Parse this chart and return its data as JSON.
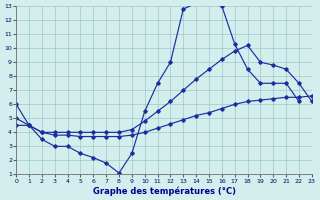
{
  "xlabel": "Graphe des températures (°C)",
  "xlim": [
    0,
    23
  ],
  "ylim": [
    1,
    13
  ],
  "xticks": [
    0,
    1,
    2,
    3,
    4,
    5,
    6,
    7,
    8,
    9,
    10,
    11,
    12,
    13,
    14,
    15,
    16,
    17,
    18,
    19,
    20,
    21,
    22,
    23
  ],
  "yticks": [
    1,
    2,
    3,
    4,
    5,
    6,
    7,
    8,
    9,
    10,
    11,
    12,
    13
  ],
  "bg_color": "#d4eeee",
  "line_color": "#1a2e9e",
  "grid_color": "#9cc8c8",
  "line1_x": [
    0,
    1,
    2,
    3,
    4,
    5,
    6,
    7,
    8,
    9,
    10,
    11,
    12,
    13,
    14,
    15,
    16,
    17,
    18,
    19,
    20,
    21,
    22
  ],
  "line1_y": [
    6.0,
    4.5,
    3.5,
    3.0,
    3.0,
    2.5,
    2.2,
    1.8,
    1.1,
    2.5,
    5.5,
    7.5,
    9.0,
    12.8,
    13.2,
    13.2,
    13.0,
    10.3,
    8.5,
    7.5,
    7.5,
    7.5,
    6.2
  ],
  "line2_x": [
    0,
    1,
    2,
    3,
    4,
    5,
    6,
    7,
    8,
    9,
    10,
    11,
    12,
    13,
    14,
    15,
    16,
    17,
    18,
    19,
    20,
    21,
    22,
    23
  ],
  "line2_y": [
    4.5,
    4.5,
    4.0,
    3.8,
    3.8,
    3.7,
    3.7,
    3.7,
    3.7,
    3.8,
    4.0,
    4.3,
    4.6,
    4.9,
    5.2,
    5.4,
    5.7,
    6.0,
    6.2,
    6.3,
    6.4,
    6.5,
    6.5,
    6.6
  ],
  "line3_x": [
    0,
    1,
    2,
    3,
    4,
    5,
    6,
    7,
    8,
    9,
    10,
    11,
    12,
    13,
    14,
    15,
    16,
    17,
    18,
    19,
    20,
    21,
    22,
    23
  ],
  "line3_y": [
    5.0,
    4.5,
    4.0,
    4.0,
    4.0,
    4.0,
    4.0,
    4.0,
    4.0,
    4.2,
    4.8,
    5.5,
    6.2,
    7.0,
    7.8,
    8.5,
    9.2,
    9.8,
    10.2,
    9.0,
    8.8,
    8.5,
    7.5,
    6.2
  ]
}
